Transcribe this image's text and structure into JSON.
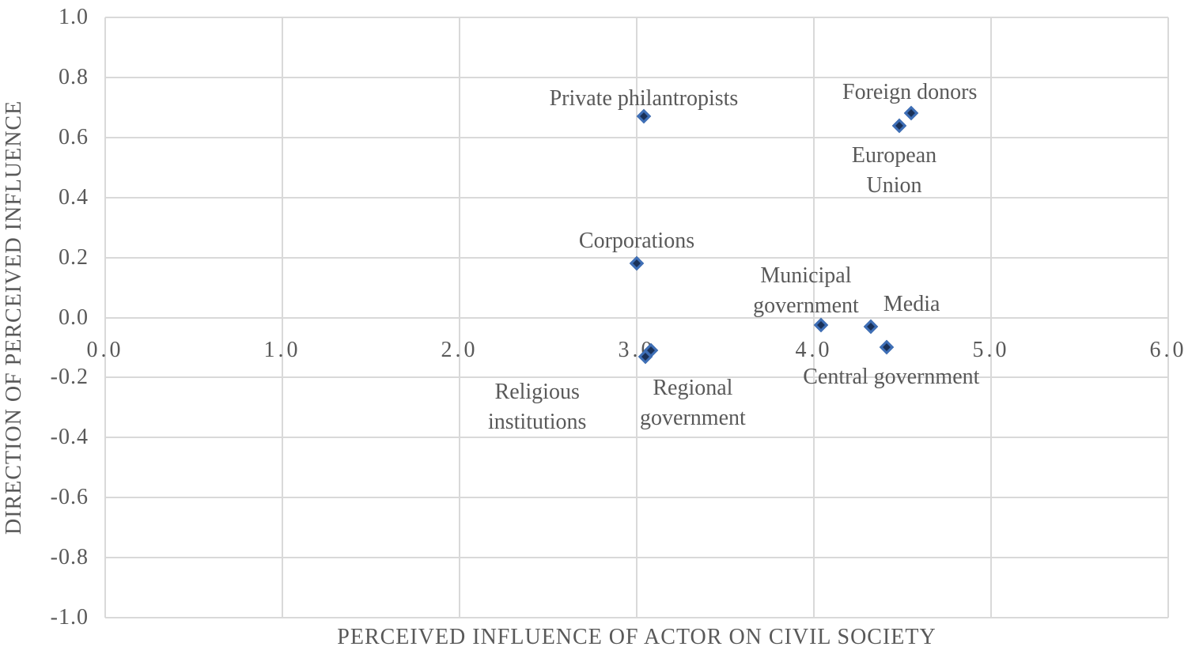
{
  "chart_data": {
    "type": "scatter",
    "title": "",
    "xlabel": "PERCEIVED INFLUENCE OF ACTOR ON CIVIL SOCIETY",
    "ylabel": "DIRECTION OF PERCEIVED INFLUENCE",
    "xlim": [
      0,
      6
    ],
    "ylim": [
      -1,
      1
    ],
    "grid": true,
    "legend": "none",
    "colors": {
      "text": "#595959",
      "gridline": "#d9d9d9",
      "marker_fill": "#1a3158",
      "marker_border": "#3e6fb7",
      "background": "#ffffff"
    },
    "marker": {
      "shape": "diamond"
    },
    "x_ticks": [
      {
        "value": 0,
        "label": "0.0"
      },
      {
        "value": 1,
        "label": "1.0"
      },
      {
        "value": 2,
        "label": "2.0"
      },
      {
        "value": 3,
        "label": "3.0"
      },
      {
        "value": 4,
        "label": "4.0"
      },
      {
        "value": 5,
        "label": "5.0"
      },
      {
        "value": 6,
        "label": "6.0"
      }
    ],
    "y_ticks": [
      {
        "value": 1.0,
        "label": "1.0"
      },
      {
        "value": 0.8,
        "label": "0.8"
      },
      {
        "value": 0.6,
        "label": "0.6"
      },
      {
        "value": 0.4,
        "label": "0.4"
      },
      {
        "value": 0.2,
        "label": "0.2"
      },
      {
        "value": 0.0,
        "label": "0.0"
      },
      {
        "value": -0.2,
        "label": "-0.2"
      },
      {
        "value": -0.4,
        "label": "-0.4"
      },
      {
        "value": -0.6,
        "label": "-0.6"
      },
      {
        "value": -0.8,
        "label": "-0.8"
      },
      {
        "value": -1.0,
        "label": "-1.0"
      }
    ],
    "points": [
      {
        "label": "Private philantropists",
        "x": 3.04,
        "y": 0.67,
        "label_offset": [
          0,
          -22
        ]
      },
      {
        "label": "Foreign donors",
        "x": 4.55,
        "y": 0.68,
        "label_offset": [
          -2,
          -26
        ]
      },
      {
        "label": "European\nUnion",
        "x": 4.48,
        "y": 0.64,
        "label_offset": [
          -6,
          57
        ]
      },
      {
        "label": "Corporations",
        "x": 3.0,
        "y": 0.18,
        "label_offset": [
          0,
          -28
        ]
      },
      {
        "label": "Municipal\ngovernment",
        "x": 4.04,
        "y": -0.025,
        "label_offset": [
          -19,
          -43
        ]
      },
      {
        "label": "Media",
        "x": 4.32,
        "y": -0.03,
        "label_offset": [
          52,
          -28
        ]
      },
      {
        "label": "Central government",
        "x": 4.41,
        "y": -0.1,
        "label_offset": [
          6,
          38
        ]
      },
      {
        "label": "Regional\ngovernment",
        "x": 3.08,
        "y": -0.11,
        "label_offset": [
          53,
          67
        ]
      },
      {
        "label": "Religious\ninstitutions",
        "x": 3.05,
        "y": -0.13,
        "label_offset": [
          -137,
          64
        ]
      }
    ]
  }
}
